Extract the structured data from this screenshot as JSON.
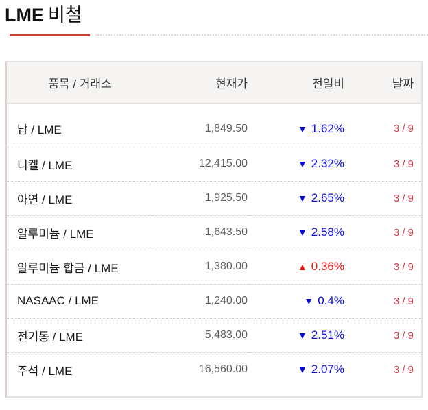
{
  "header": {
    "title": "LME",
    "subtitle": "비철"
  },
  "table": {
    "columns": [
      "품목 / 거래소",
      "현재가",
      "전일비",
      "날짜"
    ],
    "rows": [
      {
        "item": "납 / LME",
        "price": "1,849.50",
        "direction": "down",
        "arrow": "▼",
        "change": "1.62%",
        "date": "3 / 9"
      },
      {
        "item": "니켈 / LME",
        "price": "12,415.00",
        "direction": "down",
        "arrow": "▼",
        "change": "2.32%",
        "date": "3 / 9"
      },
      {
        "item": "아연 / LME",
        "price": "1,925.50",
        "direction": "down",
        "arrow": "▼",
        "change": "2.65%",
        "date": "3 / 9"
      },
      {
        "item": "알루미늄 / LME",
        "price": "1,643.50",
        "direction": "down",
        "arrow": "▼",
        "change": "2.58%",
        "date": "3 / 9"
      },
      {
        "item": "알루미늄 합금 / LME",
        "price": "1,380.00",
        "direction": "up",
        "arrow": "▲",
        "change": "0.36%",
        "date": "3 / 9"
      },
      {
        "item": "NASAAC / LME",
        "price": "1,240.00",
        "direction": "down",
        "arrow": "▼",
        "change": "0.4%",
        "date": "3 / 9"
      },
      {
        "item": "전기동 / LME",
        "price": "5,483.00",
        "direction": "down",
        "arrow": "▼",
        "change": "2.51%",
        "date": "3 / 9"
      },
      {
        "item": "주석 / LME",
        "price": "16,560.00",
        "direction": "down",
        "arrow": "▼",
        "change": "2.07%",
        "date": "3 / 9"
      }
    ]
  },
  "colors": {
    "up": "#ee1111",
    "down": "#0a0ad6",
    "date": "#d63c4e",
    "accent_bar": "#cf3c3c"
  }
}
